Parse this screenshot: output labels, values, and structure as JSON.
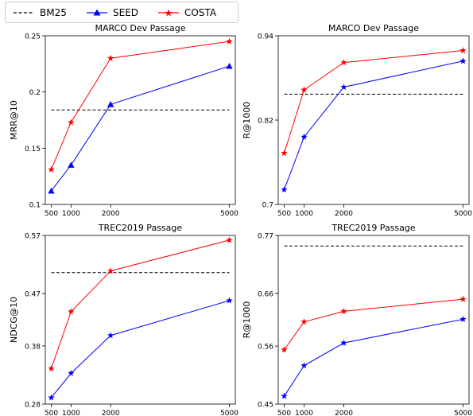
{
  "legend": {
    "placement": "top-left",
    "items": [
      {
        "label": "BM25",
        "color": "#000000",
        "style": "dashed",
        "marker": "none"
      },
      {
        "label": "SEED",
        "color": "#0000ff",
        "style": "solid",
        "marker": "triangle"
      },
      {
        "label": "COSTA",
        "color": "#ff0000",
        "style": "solid",
        "marker": "star"
      }
    ]
  },
  "chart_data": [
    {
      "type": "line",
      "title": "MARCO Dev Passage",
      "ylabel": "MRR@10",
      "xlabel": "",
      "x": [
        500,
        1000,
        2000,
        5000
      ],
      "xticks": [
        "500",
        "1000",
        "2000",
        "5000"
      ],
      "xlim": [
        350,
        5150
      ],
      "ylim": [
        0.1,
        0.25
      ],
      "yticks": [
        0.1,
        0.15,
        0.2,
        0.25
      ],
      "ytick_labels": [
        "0.1",
        "0.15",
        "0.2",
        "0.25"
      ],
      "grid": false,
      "baseline": {
        "name": "BM25",
        "value": 0.184
      },
      "series": [
        {
          "name": "SEED",
          "marker": "triangle",
          "color": "#0000ff",
          "values": [
            0.112,
            0.135,
            0.189,
            0.223
          ]
        },
        {
          "name": "COSTA",
          "marker": "star",
          "color": "#ff0000",
          "values": [
            0.131,
            0.173,
            0.23,
            0.245
          ]
        }
      ]
    },
    {
      "type": "line",
      "title": "MARCO Dev Passage",
      "ylabel": "R@1000",
      "xlabel": "",
      "x": [
        500,
        1000,
        2000,
        5000
      ],
      "xticks": [
        "500",
        "1000",
        "2000",
        "5000"
      ],
      "xlim": [
        350,
        5150
      ],
      "ylim": [
        0.7,
        0.94
      ],
      "yticks": [
        0.7,
        0.82,
        0.94
      ],
      "ytick_labels": [
        "0.7",
        "0.82",
        "0.94"
      ],
      "grid": false,
      "baseline": {
        "name": "BM25",
        "value": 0.857
      },
      "series": [
        {
          "name": "SEED",
          "marker": "star",
          "color": "#0000ff",
          "values": [
            0.721,
            0.796,
            0.867,
            0.904
          ]
        },
        {
          "name": "COSTA",
          "marker": "star",
          "color": "#ff0000",
          "values": [
            0.773,
            0.863,
            0.902,
            0.919
          ]
        }
      ]
    },
    {
      "type": "line",
      "title": "TREC2019 Passage",
      "ylabel": "NDCG@10",
      "xlabel": "",
      "x": [
        500,
        1000,
        2000,
        5000
      ],
      "xticks": [
        "500",
        "1000",
        "2000",
        "5000"
      ],
      "xlim": [
        350,
        5150
      ],
      "ylim": [
        0.28,
        0.57
      ],
      "yticks": [
        0.28,
        0.38,
        0.47,
        0.57
      ],
      "ytick_labels": [
        "0.28",
        "0.38",
        "0.47",
        "0.57"
      ],
      "grid": false,
      "baseline": {
        "name": "BM25",
        "value": 0.506
      },
      "series": [
        {
          "name": "SEED",
          "marker": "star",
          "color": "#0000ff",
          "values": [
            0.291,
            0.333,
            0.398,
            0.458
          ]
        },
        {
          "name": "COSTA",
          "marker": "star",
          "color": "#ff0000",
          "values": [
            0.341,
            0.439,
            0.509,
            0.562
          ]
        }
      ]
    },
    {
      "type": "line",
      "title": "TREC2019 Passage",
      "ylabel": "R@1000",
      "xlabel": "",
      "x": [
        500,
        1000,
        2000,
        5000
      ],
      "xticks": [
        "500",
        "1000",
        "2000",
        "5000"
      ],
      "xlim": [
        350,
        5150
      ],
      "ylim": [
        0.45,
        0.77
      ],
      "yticks": [
        0.45,
        0.56,
        0.66,
        0.77
      ],
      "ytick_labels": [
        "0.45",
        "0.56",
        "0.66",
        "0.77"
      ],
      "grid": false,
      "baseline": {
        "name": "BM25",
        "value": 0.75
      },
      "series": [
        {
          "name": "SEED",
          "marker": "star",
          "color": "#0000ff",
          "values": [
            0.465,
            0.523,
            0.566,
            0.611
          ]
        },
        {
          "name": "COSTA",
          "marker": "star",
          "color": "#ff0000",
          "values": [
            0.553,
            0.606,
            0.626,
            0.649
          ]
        }
      ]
    }
  ]
}
